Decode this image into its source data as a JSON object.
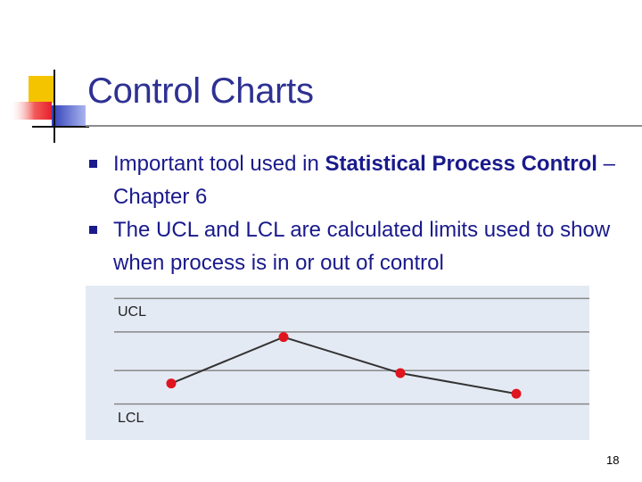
{
  "slide": {
    "title": "Control Charts",
    "page_number": "18"
  },
  "bullets": [
    {
      "text_before": "Important tool used in ",
      "bold": "Statistical Process Control",
      "text_after": " – Chapter 6"
    },
    {
      "text_before": "The UCL and LCL are calculated limits used to show when process is in or out of control",
      "bold": "",
      "text_after": ""
    }
  ],
  "chart_data": {
    "type": "line",
    "ucl_label": "UCL",
    "lcl_label": "LCL",
    "values": [
      2.2,
      4.0,
      2.6,
      1.8
    ],
    "ylim": [
      0,
      6
    ],
    "colors": {
      "background": "#e4eaf4",
      "line": "#333333",
      "points": "#e0141e",
      "gridlines": "#888888"
    }
  },
  "colors": {
    "title": "#2e3192",
    "text": "#1a1a8c",
    "logo_yellow": "#f5c400",
    "logo_red": "#e8202a",
    "logo_blue": "#3040b8"
  }
}
